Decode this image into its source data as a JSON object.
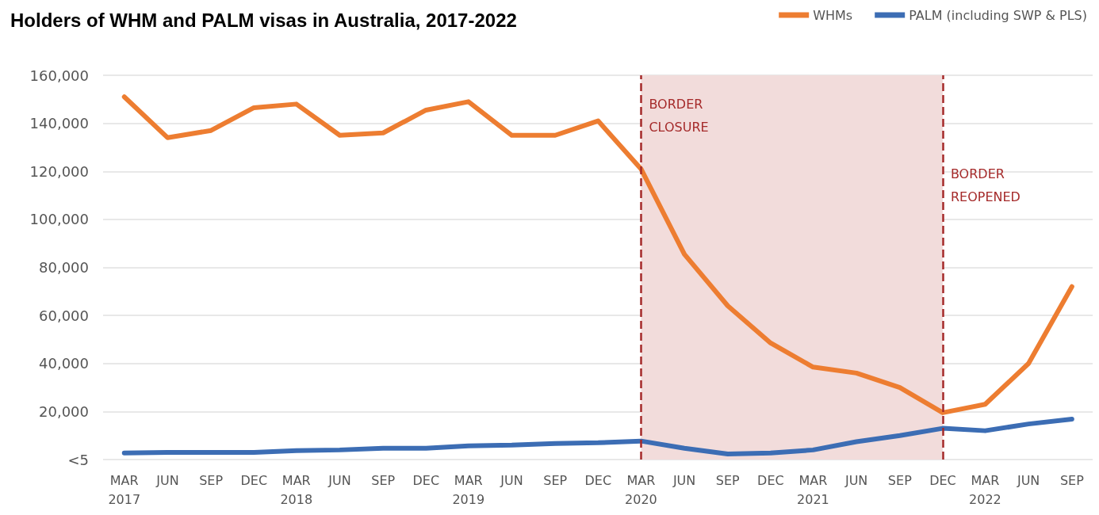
{
  "chart_data": {
    "type": "line",
    "title": "Holders of WHM and PALM visas in Australia, 2017-2022",
    "x": [
      "2017-03",
      "2017-06",
      "2017-09",
      "2017-12",
      "2018-03",
      "2018-06",
      "2018-09",
      "2018-12",
      "2019-03",
      "2019-06",
      "2019-09",
      "2019-12",
      "2020-03",
      "2020-06",
      "2020-09",
      "2020-12",
      "2021-03",
      "2021-06",
      "2021-09",
      "2021-12",
      "2022-03",
      "2022-06",
      "2022-09"
    ],
    "series": [
      {
        "name": "WHMs",
        "color": "#ed7d31",
        "values": [
          151000,
          134000,
          137000,
          146500,
          148000,
          135000,
          136000,
          145500,
          149000,
          135000,
          135000,
          141000,
          121000,
          85500,
          64000,
          48500,
          38500,
          36000,
          30000,
          19500,
          23000,
          40000,
          72000
        ]
      },
      {
        "name": "PALM (including SWP & PLS)",
        "color": "#3c6db4",
        "values": [
          2700,
          3000,
          3000,
          3000,
          3700,
          4000,
          4700,
          4700,
          5700,
          6000,
          6700,
          7000,
          7700,
          4700,
          2300,
          2700,
          4000,
          7400,
          10000,
          13000,
          12000,
          14800,
          16800
        ]
      }
    ],
    "xlim": [
      "2017-01-15",
      "2022-10-15"
    ],
    "xticks": [
      {
        "value": "2017-03",
        "label": "MAR\n2017"
      },
      {
        "value": "2017-06",
        "label": "JUN"
      },
      {
        "value": "2017-09",
        "label": "SEP"
      },
      {
        "value": "2017-12",
        "label": "DEC"
      },
      {
        "value": "2018-03",
        "label": "MAR\n2018"
      },
      {
        "value": "2018-06",
        "label": "JUN"
      },
      {
        "value": "2018-09",
        "label": "SEP"
      },
      {
        "value": "2018-12",
        "label": "DEC"
      },
      {
        "value": "2019-03",
        "label": "MAR\n2019"
      },
      {
        "value": "2019-06",
        "label": "JUN"
      },
      {
        "value": "2019-09",
        "label": "SEP"
      },
      {
        "value": "2019-12",
        "label": "DEC"
      },
      {
        "value": "2020-03",
        "label": "MAR\n2020"
      },
      {
        "value": "2020-06",
        "label": "JUN"
      },
      {
        "value": "2020-09",
        "label": "SEP"
      },
      {
        "value": "2020-12",
        "label": "DEC"
      },
      {
        "value": "2021-03",
        "label": "MAR\n2021"
      },
      {
        "value": "2021-06",
        "label": "JUN"
      },
      {
        "value": "2021-09",
        "label": "SEP"
      },
      {
        "value": "2021-12",
        "label": "DEC"
      },
      {
        "value": "2022-03",
        "label": "MAR\n2022"
      },
      {
        "value": "2022-06",
        "label": "JUN"
      },
      {
        "value": "2022-09",
        "label": "SEP"
      }
    ],
    "ylim": [
      0,
      160000
    ],
    "yticks": [
      {
        "value": 0,
        "label": "<5"
      },
      {
        "value": 20000,
        "label": "20,000"
      },
      {
        "value": 40000,
        "label": "40,000"
      },
      {
        "value": 60000,
        "label": "60,000"
      },
      {
        "value": 80000,
        "label": "80,000"
      },
      {
        "value": 100000,
        "label": "100,000"
      },
      {
        "value": 120000,
        "label": "120,000"
      },
      {
        "value": 140000,
        "label": "140,000"
      },
      {
        "value": 160000,
        "label": "160,000"
      }
    ],
    "grid": "y",
    "legend": "top right",
    "marker": "none",
    "line_style": "solid",
    "bands": [
      {
        "axis": "x",
        "from": "2020-03",
        "to": "2021-12",
        "color": "#f2dcdb"
      }
    ],
    "ref_lines": [
      {
        "axis": "x",
        "value": "2020-03",
        "label": "BORDER CLOSURE",
        "color": "#a52a2a",
        "line_style": "dashed"
      },
      {
        "axis": "x",
        "value": "2021-12",
        "label": "BORDER REOPENED",
        "color": "#a52a2a",
        "line_style": "dashed"
      }
    ]
  }
}
